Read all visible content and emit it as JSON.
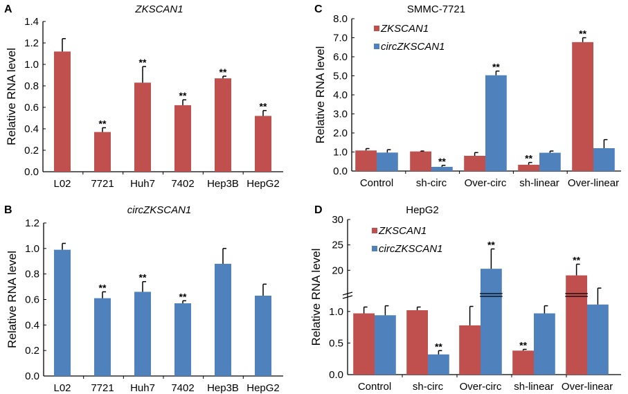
{
  "chart_data": [
    {
      "panel": "A",
      "type": "bar",
      "title": "ZKSCAN1",
      "title_italic": true,
      "ylabel": "Relative RNA level",
      "ylim": [
        0,
        1.4
      ],
      "yticks": [
        "0.0",
        "0.2",
        "0.4",
        "0.6",
        "0.8",
        "1.0",
        "1.2",
        "1.4"
      ],
      "categories": [
        "L02",
        "7721",
        "Huh7",
        "7402",
        "Hep3B",
        "HepG2"
      ],
      "series": [
        {
          "color": "#c0504d",
          "values": [
            1.12,
            0.37,
            0.83,
            0.62,
            0.87,
            0.52
          ],
          "errors": [
            0.12,
            0.04,
            0.15,
            0.05,
            0.02,
            0.05
          ],
          "significance": [
            "",
            "**",
            "**",
            "**",
            "**",
            "**"
          ]
        }
      ]
    },
    {
      "panel": "B",
      "type": "bar",
      "title": "circZKSCAN1",
      "title_italic": true,
      "ylabel": "Relative RNA level",
      "ylim": [
        0,
        1.2
      ],
      "yticks": [
        "0.0",
        "0.2",
        "0.4",
        "0.6",
        "0.8",
        "1.0",
        "1.2"
      ],
      "categories": [
        "L02",
        "7721",
        "Huh7",
        "7402",
        "Hep3B",
        "HepG2"
      ],
      "series": [
        {
          "color": "#4f81bd",
          "values": [
            0.99,
            0.61,
            0.66,
            0.57,
            0.88,
            0.63
          ],
          "errors": [
            0.05,
            0.05,
            0.08,
            0.02,
            0.12,
            0.09
          ],
          "significance": [
            "",
            "**",
            "**",
            "**",
            "",
            ""
          ]
        }
      ]
    },
    {
      "panel": "C",
      "type": "bar",
      "title": "SMMC-7721",
      "title_italic": false,
      "ylabel": "Relative RNA level",
      "ylim": [
        0,
        8.0
      ],
      "yticks": [
        "0.0",
        "1.0",
        "2.0",
        "3.0",
        "4.0",
        "5.0",
        "6.0",
        "7.0",
        "8.0"
      ],
      "categories": [
        "Control",
        "sh-circ",
        "Over-circ",
        "sh-linear",
        "Over-linear"
      ],
      "legend": "top-left",
      "series": [
        {
          "name": "ZKSCAN1",
          "color": "#c0504d",
          "values": [
            1.08,
            1.03,
            0.8,
            0.33,
            6.77
          ],
          "errors": [
            0.1,
            0.02,
            0.17,
            0.12,
            0.23
          ],
          "significance": [
            "",
            "",
            "",
            "**",
            "**"
          ]
        },
        {
          "name": "circZKSCAN1",
          "color": "#4f81bd",
          "values": [
            0.97,
            0.22,
            5.03,
            0.96,
            1.2
          ],
          "errors": [
            0.15,
            0.08,
            0.22,
            0.09,
            0.45
          ],
          "significance": [
            "",
            "**",
            "**",
            "",
            ""
          ]
        }
      ]
    },
    {
      "panel": "D",
      "type": "bar",
      "title": "HepG2",
      "title_italic": false,
      "ylabel": "Relative RNA level",
      "axis_break": true,
      "ylim_lower": [
        0,
        1.25
      ],
      "ylim_upper": [
        15,
        30
      ],
      "yticks_lower": [
        "0.0",
        "0.5",
        "1.0"
      ],
      "yticks_upper": [
        "20",
        "25",
        "30"
      ],
      "categories": [
        "Control",
        "sh-circ",
        "Over-circ",
        "sh-linear",
        "Over-linear"
      ],
      "legend": "top-left",
      "series": [
        {
          "name": "ZKSCAN1",
          "color": "#c0504d",
          "values": [
            0.97,
            1.02,
            0.78,
            0.38,
            19.0
          ],
          "errors": [
            0.1,
            0.05,
            0.3,
            0.02,
            2.2
          ],
          "significance": [
            "",
            "",
            "",
            "**",
            "**"
          ]
        },
        {
          "name": "circZKSCAN1",
          "color": "#4f81bd",
          "values": [
            0.94,
            0.32,
            20.3,
            0.97,
            1.11
          ],
          "errors": [
            0.15,
            0.06,
            3.9,
            0.12,
            0.26
          ],
          "significance": [
            "",
            "**",
            "**",
            "",
            ""
          ]
        }
      ]
    }
  ]
}
